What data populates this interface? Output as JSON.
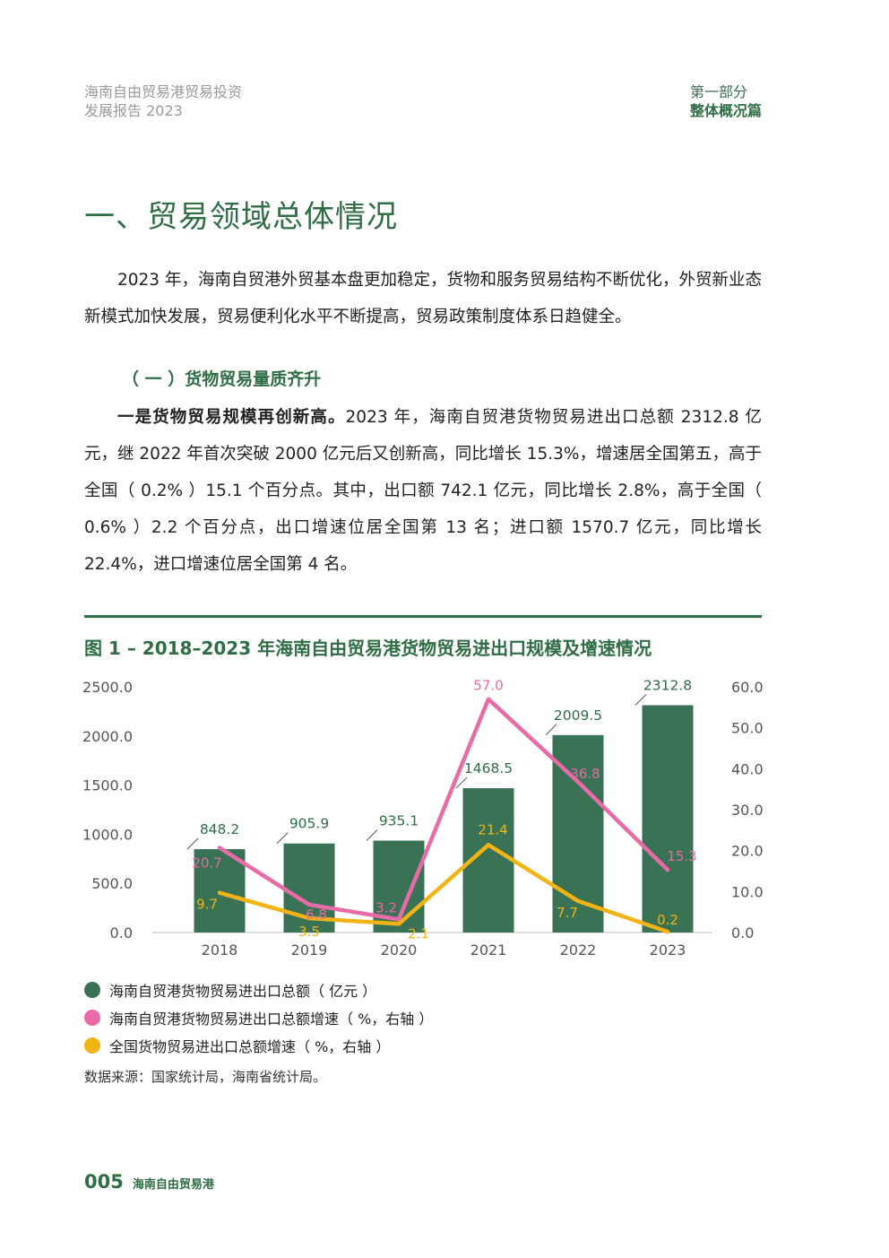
{
  "header": {
    "report_title_line1": "海南自由贸易港贸易投资",
    "report_title_line2": "发展报告 2023",
    "part_label": "第一部分",
    "part_name": "整体概况篇"
  },
  "section_title": "一、贸易领域总体情况",
  "intro_paragraph": "2023 年，海南自贸港外贸基本盘更加稳定，货物和服务贸易结构不断优化，外贸新业态新模式加快发展，贸易便利化水平不断提高，贸易政策制度体系日趋健全。",
  "subsection_title": "（ 一 ）货物贸易量质齐升",
  "body_lead": "一是货物贸易规模再创新高。",
  "body_text": "2023 年，海南自贸港货物贸易进出口总额 2312.8 亿元，继 2022 年首次突破 2000 亿元后又创新高，同比增长 15.3%，增速居全国第五，高于全国（ 0.2% ）15.1 个百分点。其中，出口额 742.1 亿元，同比增长 2.8%，高于全国（ 0.6% ）2.2 个百分点，出口增速位居全国第 13 名；进口额 1570.7 亿元，同比增长 22.4%，进口增速位居全国第 4 名。",
  "figure_title": "图 1 – 2018–2023 年海南自由贸易港货物贸易进出口规模及增速情况",
  "chart_data": {
    "type": "bar",
    "categories": [
      "2018",
      "2019",
      "2020",
      "2021",
      "2022",
      "2023"
    ],
    "left_axis": {
      "ylim": [
        0,
        2500
      ],
      "ticks": [
        "0.0",
        "500.0",
        "1000.0",
        "1500.0",
        "2000.0",
        "2500.0"
      ]
    },
    "right_axis": {
      "ylim": [
        0,
        60
      ],
      "ticks": [
        "0.0",
        "10.0",
        "20.0",
        "30.0",
        "40.0",
        "50.0",
        "60.0"
      ]
    },
    "series": [
      {
        "name": "海南自贸港货物贸易进出口总额（ 亿元 ）",
        "type": "bar",
        "axis": "left",
        "color": "#3a7256",
        "values": [
          848.2,
          905.9,
          935.1,
          1468.5,
          2009.5,
          2312.8
        ],
        "labels": [
          "848.2",
          "905.9",
          "935.1",
          "1468.5",
          "2009.5",
          "2312.8"
        ]
      },
      {
        "name": "海南自贸港货物贸易进出口总额增速（ %，右轴 ）",
        "type": "line",
        "axis": "right",
        "color": "#e86aa7",
        "values": [
          20.7,
          6.8,
          3.2,
          57.0,
          36.8,
          15.3
        ],
        "labels": [
          "20.7",
          "6.8",
          "3.2",
          "57.0",
          "36.8",
          "15.3"
        ]
      },
      {
        "name": "全国货物贸易进出口总额增速（ %，右轴 ）",
        "type": "line",
        "axis": "right",
        "color": "#f2b415",
        "values": [
          9.7,
          3.5,
          2.1,
          21.4,
          7.7,
          0.2
        ],
        "labels": [
          "9.7",
          "3.5",
          "2.1",
          "21.4",
          "7.7",
          "0.2"
        ]
      }
    ],
    "grid": false,
    "legend_position": "bottom-left"
  },
  "source_note": "数据来源：国家统计局，海南省统计局。",
  "footer": {
    "page_number": "005",
    "publication_name": "海南自由贸易港"
  }
}
